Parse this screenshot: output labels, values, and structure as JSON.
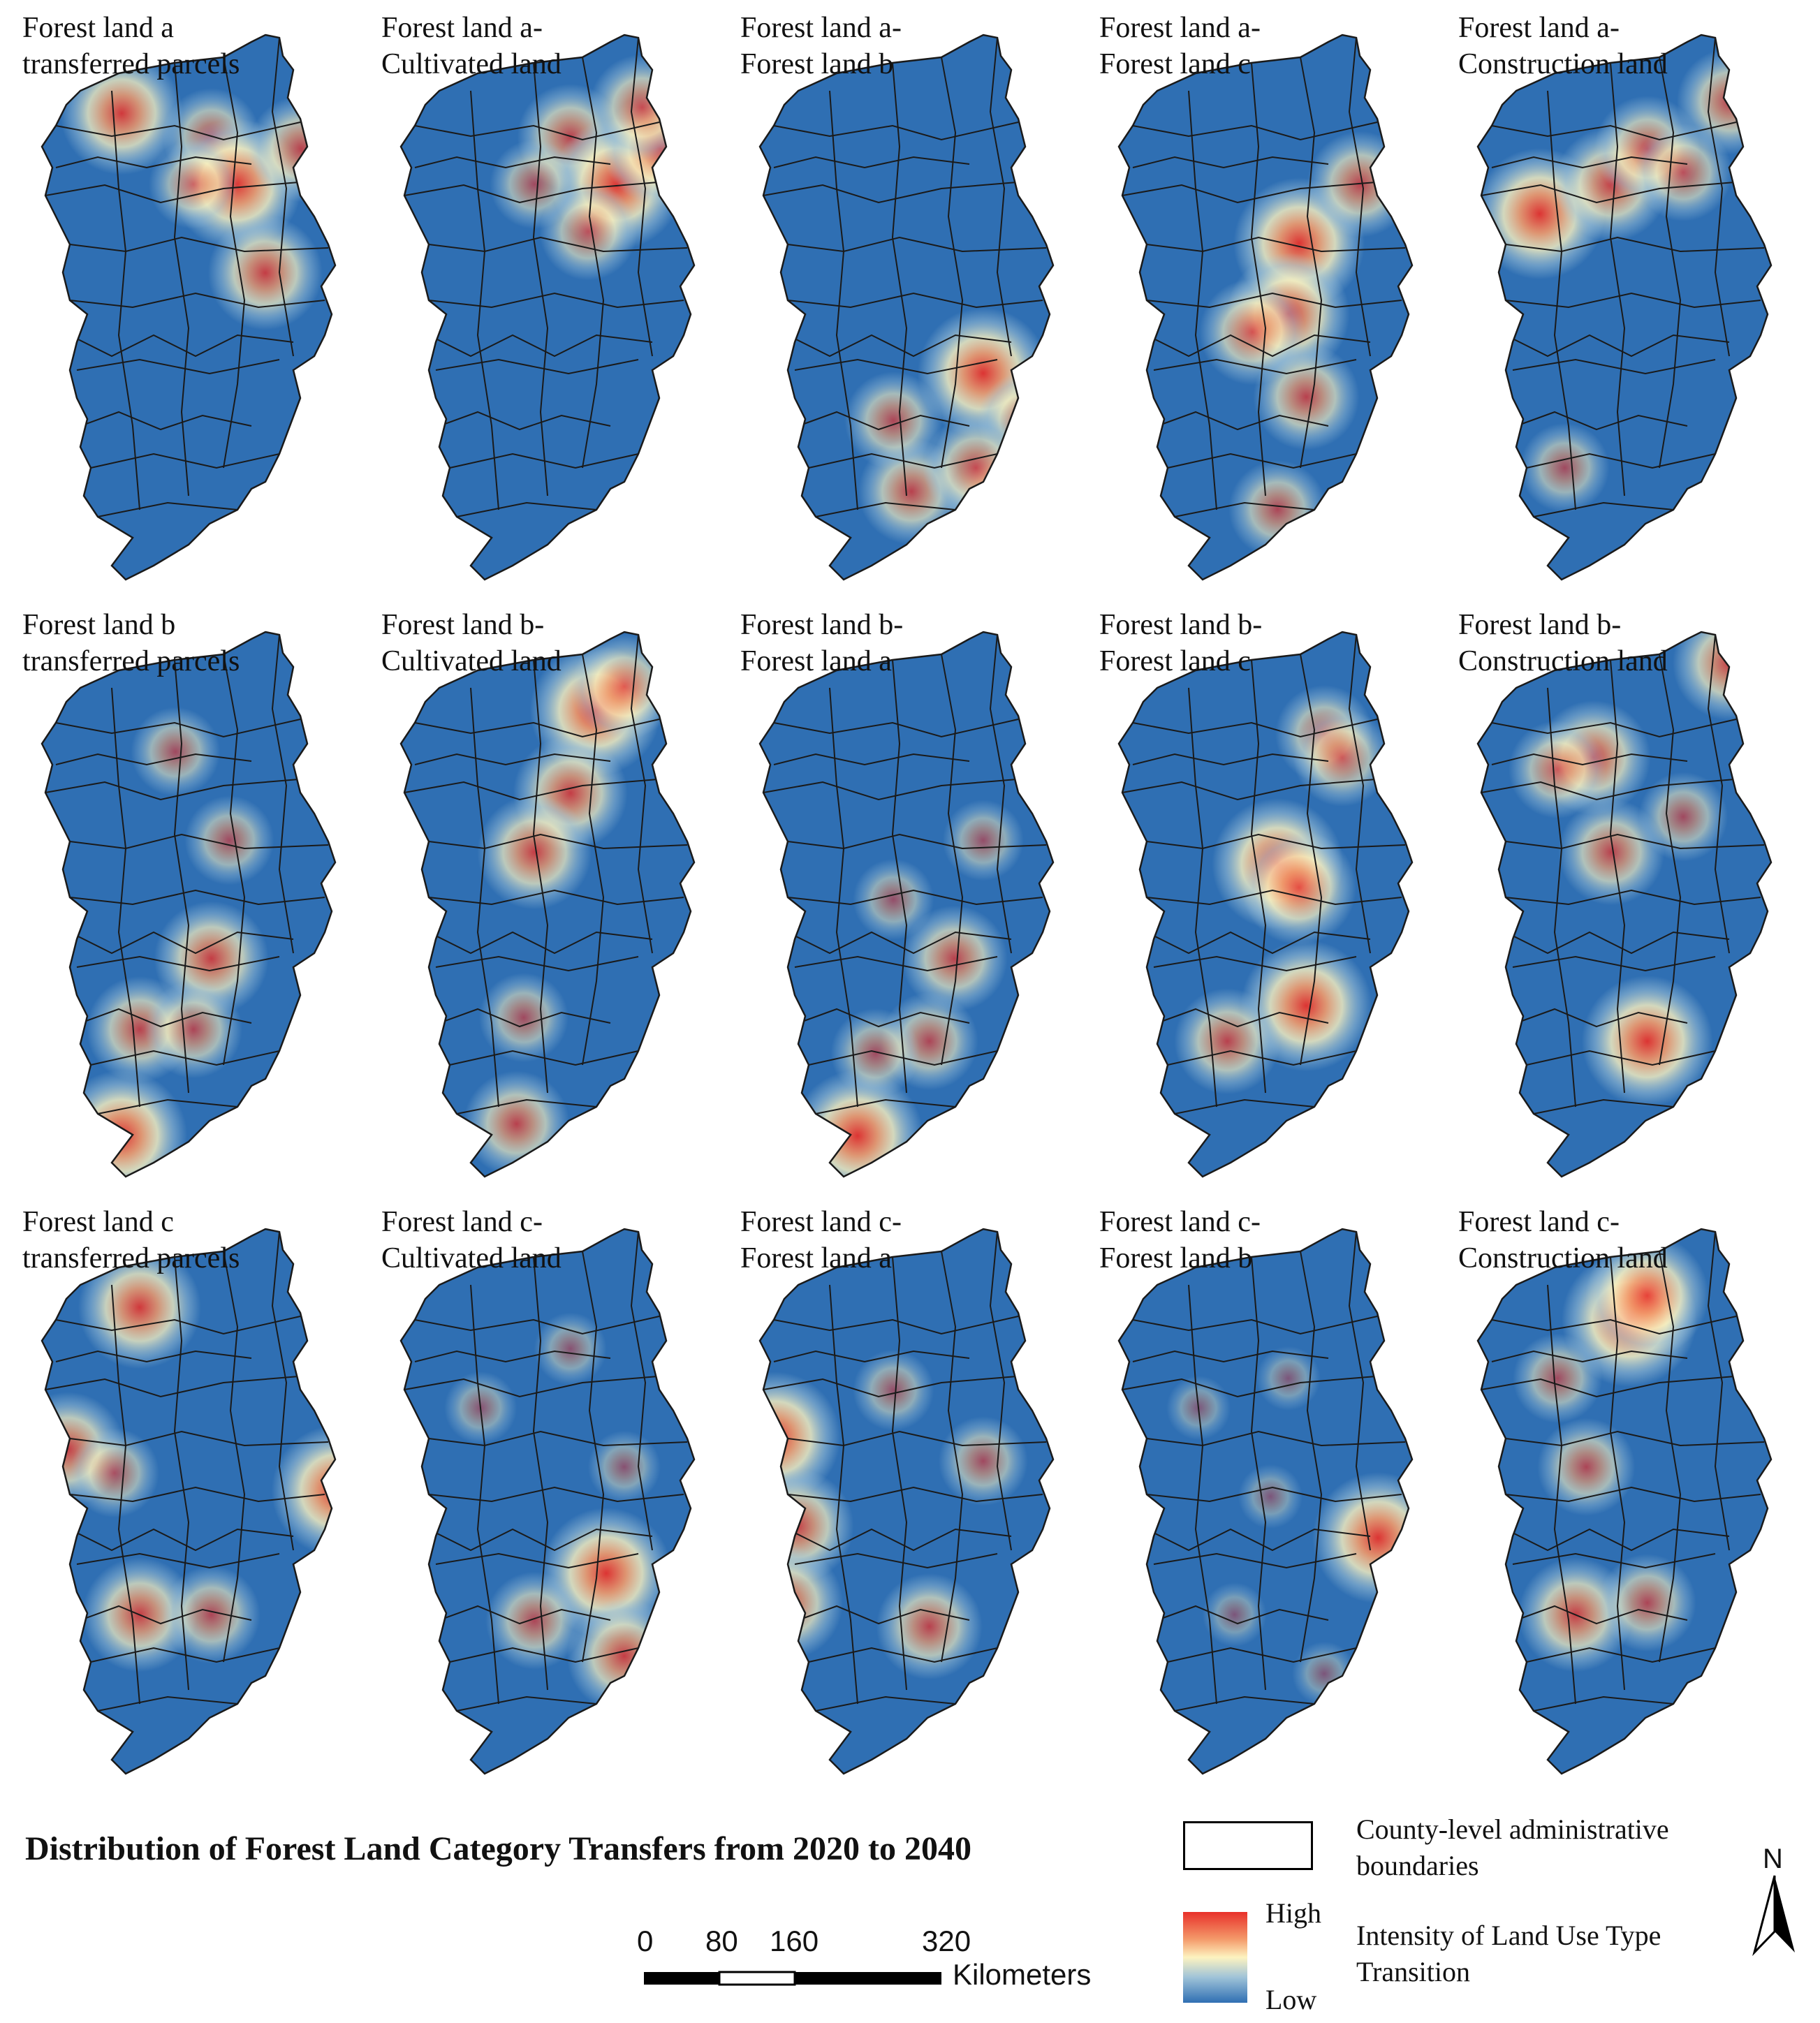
{
  "figure": {
    "title": "Distribution of Forest Land Category Transfers from 2020 to 2040"
  },
  "panels": [
    {
      "label": "Forest land a\ntransferred parcels",
      "hotspots": [
        [
          0.55,
          0.22,
          0.5
        ],
        [
          0.3,
          0.18,
          0.8
        ],
        [
          0.62,
          0.3,
          0.9
        ],
        [
          0.7,
          0.45,
          0.7
        ],
        [
          0.8,
          0.24,
          0.6
        ],
        [
          0.5,
          0.3,
          0.4
        ]
      ]
    },
    {
      "label": "Forest land a-\nCultivated land",
      "hotspots": [
        [
          0.55,
          0.22,
          0.6
        ],
        [
          0.68,
          0.3,
          0.9
        ],
        [
          0.8,
          0.24,
          0.7
        ],
        [
          0.75,
          0.17,
          0.6
        ],
        [
          0.6,
          0.38,
          0.5
        ],
        [
          0.45,
          0.3,
          0.4
        ]
      ]
    },
    {
      "label": "Forest land a-\nForest land b",
      "hotspots": [
        [
          0.7,
          0.62,
          0.9
        ],
        [
          0.82,
          0.7,
          0.5
        ],
        [
          0.78,
          0.85,
          0.9
        ],
        [
          0.5,
          0.82,
          0.6
        ],
        [
          0.68,
          0.78,
          0.6
        ],
        [
          0.45,
          0.7,
          0.5
        ]
      ]
    },
    {
      "label": "Forest land a-\nForest land c",
      "hotspots": [
        [
          0.58,
          0.4,
          0.9
        ],
        [
          0.55,
          0.52,
          0.8
        ],
        [
          0.45,
          0.55,
          0.6
        ],
        [
          0.75,
          0.3,
          0.6
        ],
        [
          0.6,
          0.66,
          0.6
        ],
        [
          0.52,
          0.85,
          0.5
        ]
      ]
    },
    {
      "label": "Forest land a-\nConstruction land",
      "hotspots": [
        [
          0.25,
          0.35,
          0.9
        ],
        [
          0.45,
          0.3,
          0.7
        ],
        [
          0.55,
          0.24,
          0.6
        ],
        [
          0.78,
          0.16,
          0.6
        ],
        [
          0.32,
          0.78,
          0.4
        ],
        [
          0.65,
          0.28,
          0.5
        ]
      ]
    },
    {
      "label": "Forest land b\ntransferred parcels",
      "hotspots": [
        [
          0.3,
          0.9,
          0.9
        ],
        [
          0.35,
          0.72,
          0.6
        ],
        [
          0.55,
          0.6,
          0.7
        ],
        [
          0.5,
          0.72,
          0.5
        ],
        [
          0.45,
          0.25,
          0.4
        ],
        [
          0.6,
          0.4,
          0.4
        ]
      ]
    },
    {
      "label": "Forest land b-\nCultivated land",
      "hotspots": [
        [
          0.62,
          0.18,
          0.9
        ],
        [
          0.55,
          0.32,
          0.7
        ],
        [
          0.45,
          0.42,
          0.7
        ],
        [
          0.42,
          0.7,
          0.4
        ],
        [
          0.4,
          0.88,
          0.6
        ],
        [
          0.7,
          0.14,
          0.6
        ]
      ]
    },
    {
      "label": "Forest land b-\nForest land a",
      "hotspots": [
        [
          0.35,
          0.9,
          0.9
        ],
        [
          0.62,
          0.6,
          0.6
        ],
        [
          0.55,
          0.74,
          0.5
        ],
        [
          0.4,
          0.76,
          0.4
        ],
        [
          0.7,
          0.4,
          0.3
        ],
        [
          0.45,
          0.5,
          0.3
        ]
      ]
    },
    {
      "label": "Forest land b-\nForest land c",
      "hotspots": [
        [
          0.52,
          0.44,
          0.9
        ],
        [
          0.58,
          0.48,
          0.7
        ],
        [
          0.6,
          0.68,
          0.9
        ],
        [
          0.38,
          0.74,
          0.6
        ],
        [
          0.65,
          0.22,
          0.5
        ],
        [
          0.7,
          0.26,
          0.5
        ]
      ]
    },
    {
      "label": "Forest land b-\nConstruction land",
      "hotspots": [
        [
          0.55,
          0.74,
          0.9
        ],
        [
          0.4,
          0.26,
          0.7
        ],
        [
          0.45,
          0.42,
          0.6
        ],
        [
          0.78,
          0.1,
          0.7
        ],
        [
          0.3,
          0.28,
          0.5
        ],
        [
          0.65,
          0.36,
          0.4
        ]
      ]
    },
    {
      "label": "Forest land c\ntransferred parcels",
      "hotspots": [
        [
          0.35,
          0.18,
          0.8
        ],
        [
          0.15,
          0.42,
          0.7
        ],
        [
          0.9,
          0.49,
          0.9
        ],
        [
          0.35,
          0.7,
          0.7
        ],
        [
          0.55,
          0.7,
          0.5
        ],
        [
          0.28,
          0.46,
          0.4
        ]
      ]
    },
    {
      "label": "Forest land c-\nCultivated land",
      "hotspots": [
        [
          0.65,
          0.63,
          0.9
        ],
        [
          0.7,
          0.77,
          0.7
        ],
        [
          0.45,
          0.71,
          0.5
        ],
        [
          0.55,
          0.25,
          0.2
        ],
        [
          0.3,
          0.35,
          0.2
        ],
        [
          0.7,
          0.45,
          0.2
        ]
      ]
    },
    {
      "label": "Forest land c-\nForest land a",
      "hotspots": [
        [
          0.12,
          0.4,
          0.9
        ],
        [
          0.18,
          0.55,
          0.7
        ],
        [
          0.15,
          0.68,
          0.7
        ],
        [
          0.55,
          0.72,
          0.6
        ],
        [
          0.7,
          0.44,
          0.4
        ],
        [
          0.45,
          0.32,
          0.3
        ]
      ]
    },
    {
      "label": "Forest land c-\nForest land b",
      "hotspots": [
        [
          0.8,
          0.57,
          0.9
        ],
        [
          0.5,
          0.5,
          0.1
        ],
        [
          0.4,
          0.7,
          0.1
        ],
        [
          0.55,
          0.3,
          0.1
        ],
        [
          0.3,
          0.35,
          0.1
        ],
        [
          0.65,
          0.8,
          0.1
        ]
      ]
    },
    {
      "label": "Forest land c-\nConstruction land",
      "hotspots": [
        [
          0.5,
          0.2,
          0.95
        ],
        [
          0.55,
          0.16,
          0.8
        ],
        [
          0.38,
          0.45,
          0.5
        ],
        [
          0.35,
          0.7,
          0.7
        ],
        [
          0.55,
          0.68,
          0.5
        ],
        [
          0.3,
          0.3,
          0.4
        ]
      ]
    }
  ],
  "legend": {
    "boundary_label": "County-level administrative\nboundaries",
    "intensity_label": "Intensity of Land Use Type\nTransition",
    "high_label": "High",
    "low_label": "Low",
    "ramp_colors": [
      "#e8302a",
      "#f49a6a",
      "#fdf3c0",
      "#9fc3d8",
      "#2f6fb3"
    ]
  },
  "scalebar": {
    "ticks": [
      "0",
      "80",
      "160",
      "320"
    ],
    "units": "Kilometers"
  },
  "north_arrow": {
    "letter": "N"
  },
  "colors": {
    "base": "#2f6fb3",
    "warm": "#e8302a",
    "boundary": "#1a1a1a"
  }
}
